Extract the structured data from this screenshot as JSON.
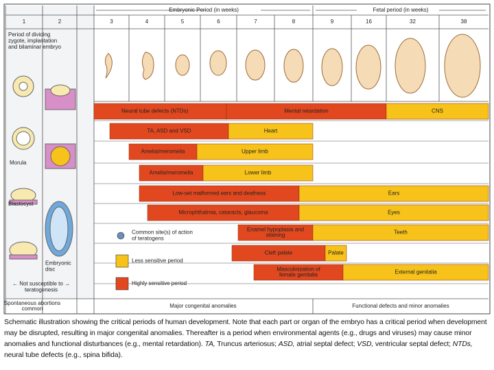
{
  "header": {
    "embryonic_period": "Embryonic Period (in weeks)",
    "fetal_period": "Fetal period (in weeks)"
  },
  "stage_columns": [
    "1",
    "2"
  ],
  "weeks": [
    "3",
    "4",
    "5",
    "6",
    "7",
    "8",
    "9",
    "16",
    "32",
    "38"
  ],
  "left_notes": {
    "period": [
      "Period of dividing",
      "zygote, implantation",
      "and bilaminar embryo"
    ],
    "morula": "Morula",
    "blastocyst": "Blastocyst",
    "embryonic_disc": [
      "Embryonic",
      "disc"
    ],
    "not_susceptible": [
      "← Not susceptible to →",
      "teratogenesis"
    ]
  },
  "rows": [
    {
      "segments": [
        {
          "label": "Neural tube defects (NTDs)",
          "color": "#e2481f"
        },
        {
          "label": "Mental retardation",
          "color": "#e2481f"
        },
        {
          "label": "CNS",
          "color": "#f7c21a"
        }
      ]
    },
    {
      "segments": [
        {
          "label": "TA, ASD and VSD",
          "color": "#e2481f"
        },
        {
          "label": "Heart",
          "color": "#f7c21a"
        }
      ]
    },
    {
      "segments": [
        {
          "label": "Amelia/meromelia",
          "color": "#e2481f"
        },
        {
          "label": "Upper limb",
          "color": "#f7c21a"
        }
      ]
    },
    {
      "segments": [
        {
          "label": "Amelia/meromelia",
          "color": "#e2481f"
        },
        {
          "label": "Lower limb",
          "color": "#f7c21a"
        }
      ]
    },
    {
      "segments": [
        {
          "label": "Low-set malformed ears and deafness",
          "color": "#e2481f"
        },
        {
          "label": "Ears",
          "color": "#f7c21a"
        }
      ]
    },
    {
      "segments": [
        {
          "label": "Microphthalmia, cataracts, glaucoma",
          "color": "#e2481f"
        },
        {
          "label": "Eyes",
          "color": "#f7c21a"
        }
      ]
    },
    {
      "segments": [
        {
          "label": [
            "Enamel hypoplasia and",
            "staining"
          ],
          "color": "#e2481f"
        },
        {
          "label": "Teeth",
          "color": "#f7c21a"
        }
      ]
    },
    {
      "segments": [
        {
          "label": "Cleft palate",
          "color": "#e2481f"
        },
        {
          "label": "Palate",
          "color": "#f7c21a"
        }
      ]
    },
    {
      "segments": [
        {
          "label": [
            "Masculinization of",
            "female genitalia"
          ],
          "color": "#e2481f"
        },
        {
          "label": "External genitalia",
          "color": "#f7c21a"
        }
      ]
    }
  ],
  "legend": [
    {
      "label": [
        "Common site(s) of action",
        "of teratogens"
      ],
      "color": "#6a8fb8"
    },
    {
      "label": [
        "Less sensitive period"
      ],
      "color": "#f7c21a"
    },
    {
      "label": [
        "Highly sensitive period"
      ],
      "color": "#e2481f"
    }
  ],
  "bottom": {
    "spontaneous": [
      "Spontaneous abortions",
      "common"
    ],
    "major": "Major congenital anomalies",
    "functional": "Functional defects and minor anomalies"
  },
  "caption": [
    {
      "text": "Schematic illustration showing the critical periods of human development. Note that each part or organ of the embryo has a critical period when development may be disrupted, resulting in major congenital anomalies. Thereafter is a period when environmental agents (e.g., drugs and viruses) may cause minor anomalies and functional disturbances (e.g., mental retardation). ",
      "italic": false
    },
    {
      "text": "TA,",
      "italic": true
    },
    {
      "text": " Truncus arteriosus; ",
      "italic": false
    },
    {
      "text": "ASD,",
      "italic": true
    },
    {
      "text": " atrial septal defect; ",
      "italic": false
    },
    {
      "text": "VSD,",
      "italic": true
    },
    {
      "text": " ventricular septal defect; ",
      "italic": false
    },
    {
      "text": "NTDs,",
      "italic": true
    },
    {
      "text": " neural tube defects (e.g., spina bifida).",
      "italic": false
    }
  ]
}
